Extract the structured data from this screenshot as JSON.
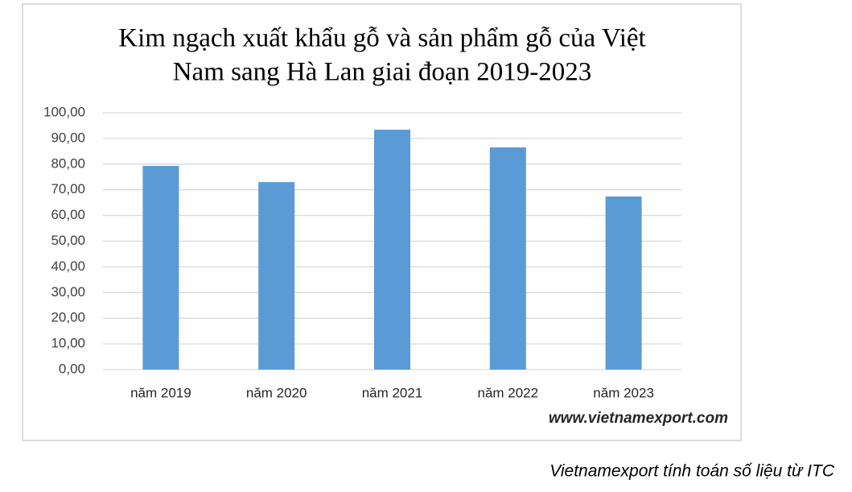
{
  "chart_data": {
    "type": "bar",
    "title": [
      "Kim ngạch xuất khẩu gỗ và sản phẩm gỗ của Việt",
      "Nam sang Hà Lan giai đoạn 2019-2023"
    ],
    "categories": [
      "năm 2019",
      "năm 2020",
      "năm 2021",
      "năm 2022",
      "năm 2023"
    ],
    "values": [
      79.3,
      73.0,
      93.4,
      86.5,
      67.4
    ],
    "color": "#5b9bd5",
    "ylim": [
      0,
      100
    ],
    "yticks": [
      {
        "value": 0,
        "label": "0,00"
      },
      {
        "value": 10,
        "label": "10,00"
      },
      {
        "value": 20,
        "label": "20,00"
      },
      {
        "value": 30,
        "label": "30,00"
      },
      {
        "value": 40,
        "label": "40,00"
      },
      {
        "value": 50,
        "label": "50,00"
      },
      {
        "value": 60,
        "label": "60,00"
      },
      {
        "value": 70,
        "label": "70,00"
      },
      {
        "value": 80,
        "label": "80,00"
      },
      {
        "value": 90,
        "label": "90,00"
      },
      {
        "value": 100,
        "label": "100,00"
      }
    ],
    "grid": true,
    "watermark": "www.vietnamexport.com"
  },
  "source": "Vietnamexport tính toán số liệu từ ITC"
}
